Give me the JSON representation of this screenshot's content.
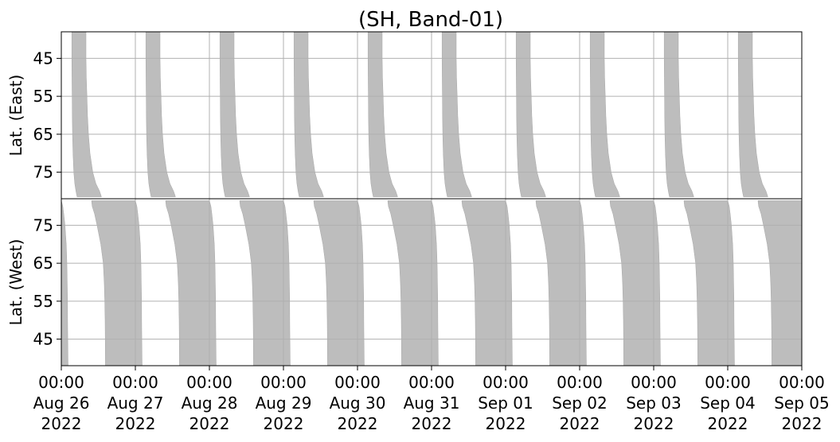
{
  "chart_data": [
    {
      "type": "area",
      "panel": "east",
      "title": "(SH, Band-01)",
      "xlabel": "",
      "ylabel": "Lat. (East)",
      "yticks": [
        45,
        55,
        65,
        75
      ],
      "ylim": [
        38,
        82
      ],
      "y_direction": "increasing-downward",
      "grid": true,
      "fill_color": "#bdbdbd",
      "series": [
        {
          "day_offsets": [
            0,
            1,
            2,
            3,
            4,
            5,
            6,
            7,
            8,
            9
          ],
          "profile_lat": [
            38,
            45,
            50,
            55,
            60,
            65,
            70,
            75,
            78,
            80,
            81.5
          ],
          "profile_start_hours": [
            3.4,
            3.4,
            3.45,
            3.5,
            3.55,
            3.65,
            3.8,
            4.05,
            4.35,
            4.75,
            5.1
          ],
          "profile_end_hours": [
            8.0,
            8.0,
            8.1,
            8.3,
            8.5,
            8.8,
            9.3,
            10.2,
            11.2,
            12.4,
            13.0
          ]
        }
      ]
    },
    {
      "type": "area",
      "panel": "west",
      "title": "",
      "xlabel": "",
      "ylabel": "Lat. (West)",
      "yticks": [
        75,
        65,
        55,
        45
      ],
      "ylim": [
        38,
        82
      ],
      "y_direction": "increasing-upward",
      "grid": true,
      "fill_color": "#bdbdbd",
      "series": [
        {
          "day_offsets": [
            -1,
            0,
            1,
            2,
            3,
            4,
            5,
            6,
            7,
            8,
            9
          ],
          "profile_lat": [
            81.5,
            80,
            78,
            75,
            70,
            65,
            60,
            55,
            50,
            45,
            38
          ],
          "profile_start_hours": [
            9.8,
            10.0,
            10.8,
            11.6,
            12.8,
            13.6,
            13.9,
            14.1,
            14.2,
            14.25,
            14.3
          ],
          "profile_end_hours": [
            24.0,
            24.5,
            24.8,
            25.2,
            25.6,
            25.8,
            25.9,
            26.0,
            26.05,
            26.1,
            26.2
          ]
        }
      ]
    }
  ],
  "x_axis": {
    "start": "2022-08-26T00:00",
    "end": "2022-09-05T00:00",
    "ticks": [
      {
        "time": "00:00",
        "date": "Aug 26",
        "year": "2022"
      },
      {
        "time": "00:00",
        "date": "Aug 27",
        "year": "2022"
      },
      {
        "time": "00:00",
        "date": "Aug 28",
        "year": "2022"
      },
      {
        "time": "00:00",
        "date": "Aug 29",
        "year": "2022"
      },
      {
        "time": "00:00",
        "date": "Aug 30",
        "year": "2022"
      },
      {
        "time": "00:00",
        "date": "Aug 31",
        "year": "2022"
      },
      {
        "time": "00:00",
        "date": "Sep 01",
        "year": "2022"
      },
      {
        "time": "00:00",
        "date": "Sep 02",
        "year": "2022"
      },
      {
        "time": "00:00",
        "date": "Sep 03",
        "year": "2022"
      },
      {
        "time": "00:00",
        "date": "Sep 04",
        "year": "2022"
      },
      {
        "time": "00:00",
        "date": "Sep 05",
        "year": "2022"
      }
    ]
  },
  "colors": {
    "grid": "#b0b0b0",
    "fill": "#bdbdbd",
    "axes": "#000000"
  }
}
